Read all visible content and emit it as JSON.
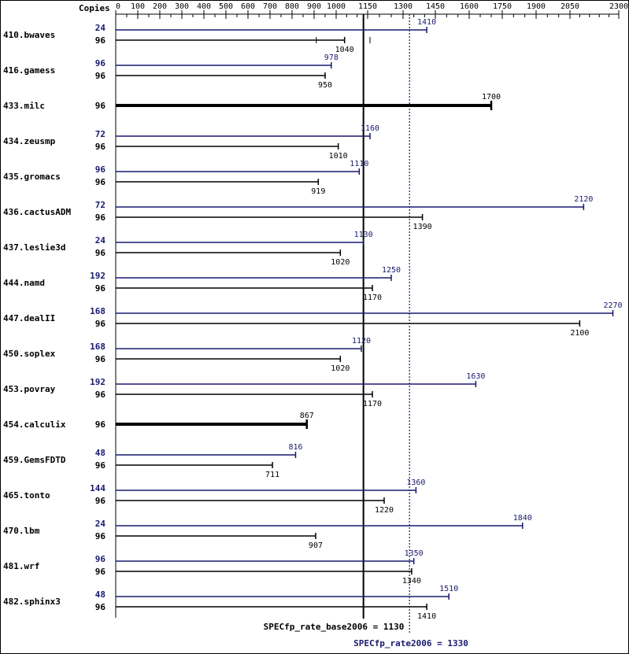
{
  "chart_data": {
    "type": "bar",
    "axis_title": "Copies",
    "ticks": [
      0,
      100,
      200,
      300,
      400,
      500,
      600,
      700,
      800,
      900,
      1000,
      1150,
      1300,
      1450,
      1600,
      1750,
      1900,
      2050,
      2300
    ],
    "xlim": [
      0,
      2300
    ],
    "colors": {
      "peak": "#191970",
      "base": "#000000"
    },
    "base_ref": {
      "label": "SPECfp_rate_base2006 = 1130",
      "value": 1130
    },
    "peak_ref": {
      "label": "SPECfp_rate2006 = 1330",
      "value": 1330
    },
    "benchmarks": [
      {
        "name": "410.bwaves",
        "peak": {
          "copies": "24",
          "value": 1410,
          "label": "1410"
        },
        "base": {
          "copies": "96",
          "value": 1040,
          "label": "1040",
          "runs": [
            910,
            1040,
            1160
          ]
        }
      },
      {
        "name": "416.gamess",
        "peak": {
          "copies": "96",
          "value": 978,
          "label": "978"
        },
        "base": {
          "copies": "96",
          "value": 950,
          "label": "950"
        }
      },
      {
        "name": "433.milc",
        "base": {
          "copies": "96",
          "value": 1700,
          "label": "1700",
          "bold": true
        }
      },
      {
        "name": "434.zeusmp",
        "peak": {
          "copies": "72",
          "value": 1160,
          "label": "1160"
        },
        "base": {
          "copies": "96",
          "value": 1010,
          "label": "1010"
        }
      },
      {
        "name": "435.gromacs",
        "peak": {
          "copies": "96",
          "value": 1110,
          "label": "1110"
        },
        "base": {
          "copies": "96",
          "value": 919,
          "label": "919"
        }
      },
      {
        "name": "436.cactusADM",
        "peak": {
          "copies": "72",
          "value": 2120,
          "label": "2120"
        },
        "base": {
          "copies": "96",
          "value": 1390,
          "label": "1390"
        }
      },
      {
        "name": "437.leslie3d",
        "peak": {
          "copies": "24",
          "value": 1130,
          "label": "1130"
        },
        "base": {
          "copies": "96",
          "value": 1020,
          "label": "1020"
        }
      },
      {
        "name": "444.namd",
        "peak": {
          "copies": "192",
          "value": 1250,
          "label": "1250"
        },
        "base": {
          "copies": "96",
          "value": 1170,
          "label": "1170"
        }
      },
      {
        "name": "447.dealII",
        "peak": {
          "copies": "168",
          "value": 2270,
          "label": "2270"
        },
        "base": {
          "copies": "96",
          "value": 2100,
          "label": "2100"
        }
      },
      {
        "name": "450.soplex",
        "peak": {
          "copies": "168",
          "value": 1120,
          "label": "1120"
        },
        "base": {
          "copies": "96",
          "value": 1020,
          "label": "1020"
        }
      },
      {
        "name": "453.povray",
        "peak": {
          "copies": "192",
          "value": 1630,
          "label": "1630"
        },
        "base": {
          "copies": "96",
          "value": 1170,
          "label": "1170"
        }
      },
      {
        "name": "454.calculix",
        "base": {
          "copies": "96",
          "value": 867,
          "label": "867",
          "bold": true
        }
      },
      {
        "name": "459.GemsFDTD",
        "peak": {
          "copies": "48",
          "value": 816,
          "label": "816"
        },
        "base": {
          "copies": "96",
          "value": 711,
          "label": "711"
        }
      },
      {
        "name": "465.tonto",
        "peak": {
          "copies": "144",
          "value": 1360,
          "label": "1360"
        },
        "base": {
          "copies": "96",
          "value": 1220,
          "label": "1220"
        }
      },
      {
        "name": "470.lbm",
        "peak": {
          "copies": "24",
          "value": 1840,
          "label": "1840"
        },
        "base": {
          "copies": "96",
          "value": 907,
          "label": "907"
        }
      },
      {
        "name": "481.wrf",
        "peak": {
          "copies": "96",
          "value": 1350,
          "label": "1350"
        },
        "base": {
          "copies": "96",
          "value": 1340,
          "label": "1340"
        }
      },
      {
        "name": "482.sphinx3",
        "peak": {
          "copies": "48",
          "value": 1510,
          "label": "1510"
        },
        "base": {
          "copies": "96",
          "value": 1410,
          "label": "1410"
        }
      }
    ]
  }
}
